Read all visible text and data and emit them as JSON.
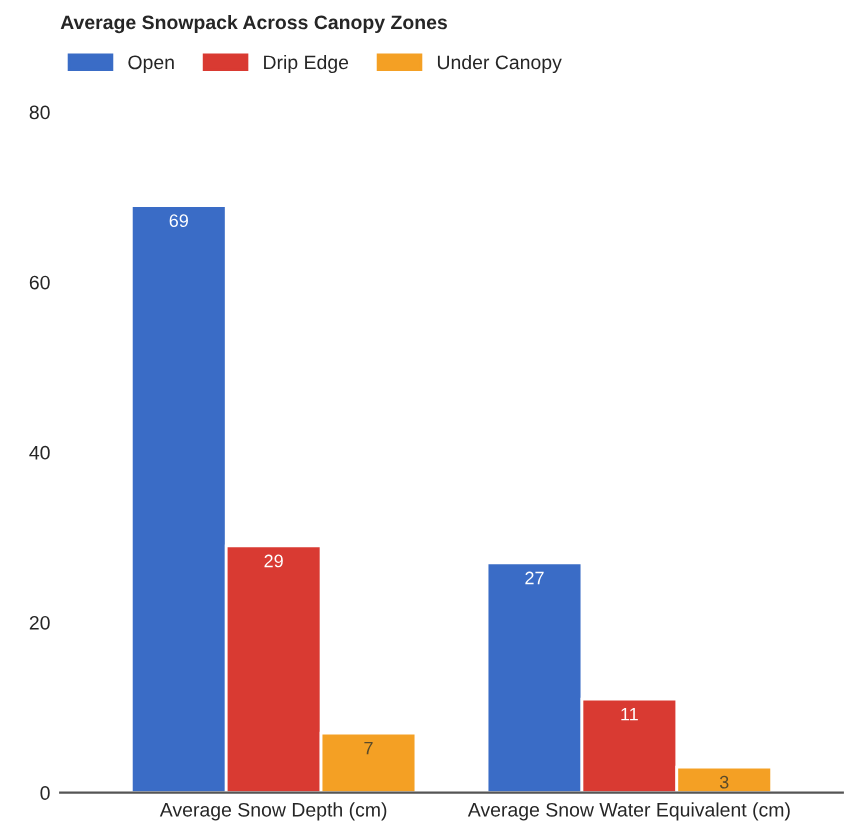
{
  "chart_data": {
    "type": "bar",
    "title": "Average Snowpack Across Canopy Zones",
    "categories": [
      "Average Snow Depth (cm)",
      "Average Snow Water Equivalent (cm)"
    ],
    "series": [
      {
        "name": "Open",
        "color": "#3a6cc6",
        "values": [
          69,
          27
        ]
      },
      {
        "name": "Drip Edge",
        "color": "#d93a32",
        "values": [
          29,
          11
        ]
      },
      {
        "name": "Under Canopy",
        "color": "#f4a024",
        "values": [
          7,
          3
        ]
      }
    ],
    "ylim": [
      0,
      80
    ],
    "yticks": [
      0,
      20,
      40,
      60,
      80
    ],
    "grid": false,
    "legend": "top left",
    "data_labels": true
  }
}
